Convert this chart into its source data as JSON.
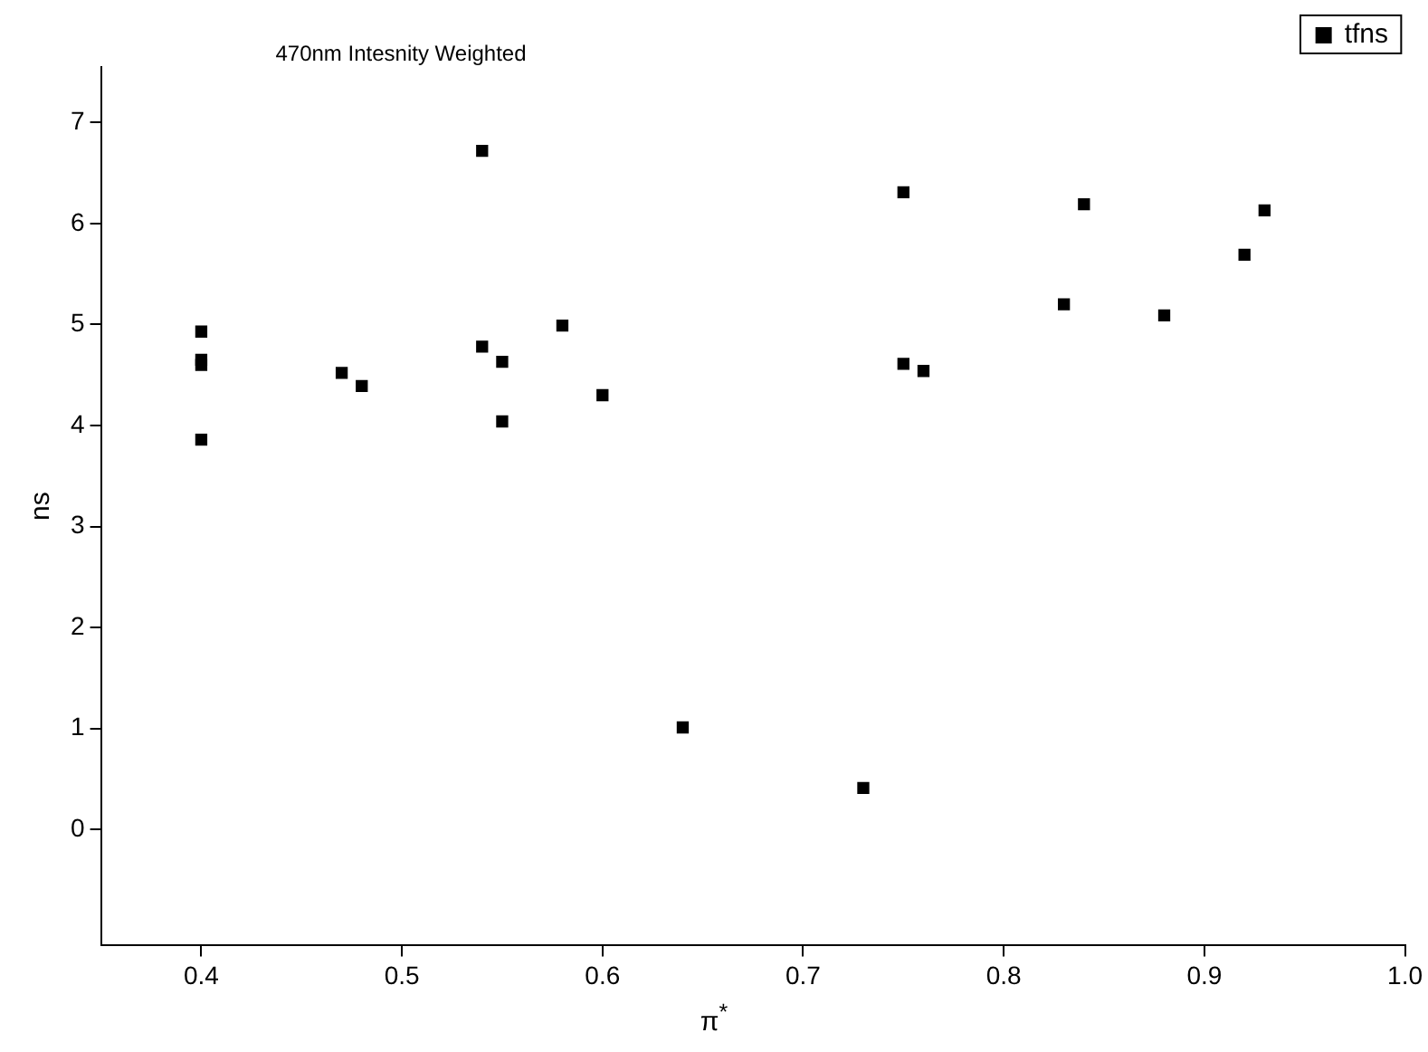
{
  "chart_data": {
    "type": "scatter",
    "title": "470nm Intesnity Weighted",
    "xlabel": "π$^{*}$",
    "ylabel": "ns",
    "xlim": [
      0.35,
      1.0
    ],
    "xticks": [
      0.4,
      0.5,
      0.6,
      0.7,
      0.8,
      0.9,
      {
        "value": 1.0,
        "label": "1.0"
      }
    ],
    "ylim": [
      -1.15,
      7.55
    ],
    "yticks": [
      0,
      1,
      2,
      3,
      4,
      5,
      6,
      7
    ],
    "grid": false,
    "legend": "top right",
    "marker": "square",
    "series": [
      {
        "name": "tfns",
        "color": "#000000",
        "x": [
          0.4,
          0.4,
          0.4,
          0.4,
          0.47,
          0.48,
          0.54,
          0.54,
          0.55,
          0.55,
          0.58,
          0.6,
          0.64,
          0.73,
          0.75,
          0.75,
          0.76,
          0.83,
          0.84,
          0.88,
          0.92,
          0.93
        ],
        "values": [
          4.93,
          4.65,
          4.6,
          3.86,
          4.52,
          4.39,
          6.72,
          4.78,
          4.63,
          4.04,
          4.99,
          4.3,
          1.01,
          0.41,
          6.31,
          4.61,
          4.54,
          5.2,
          6.19,
          5.09,
          5.69,
          6.13
        ]
      }
    ]
  }
}
